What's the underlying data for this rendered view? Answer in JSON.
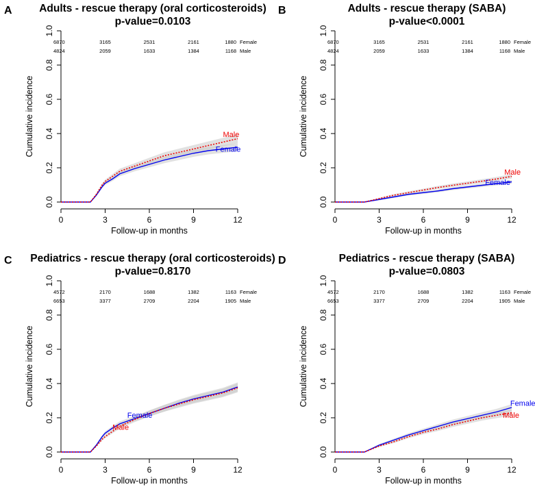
{
  "chart_data": [
    {
      "type": "line",
      "panel": "A",
      "title": "Adults - rescue therapy (oral corticosteroids)",
      "subtitle": "p-value=0.0103",
      "xlabel": "Follow-up in months",
      "ylabel": "Cumulative incidence",
      "xlim": [
        0,
        12
      ],
      "ylim": [
        0,
        1
      ],
      "xticks": [
        "0",
        "3",
        "6",
        "9",
        "12"
      ],
      "yticks": [
        "0.0",
        "0.2",
        "0.4",
        "0.6",
        "0.8",
        "1.0"
      ],
      "risk_table": [
        {
          "label": "Female",
          "counts": [
            "6870",
            "3165",
            "2531",
            "2161",
            "1880"
          ]
        },
        {
          "label": "Male",
          "counts": [
            "4824",
            "2059",
            "1633",
            "1384",
            "1168"
          ]
        }
      ],
      "series": [
        {
          "name": "Female",
          "color": "#0000ee",
          "style": "solid",
          "x": [
            0,
            2,
            2.4,
            2.8,
            3,
            3.5,
            4,
            5,
            6,
            7,
            8,
            9,
            10,
            11,
            12
          ],
          "y": [
            0,
            0,
            0.04,
            0.09,
            0.11,
            0.135,
            0.165,
            0.195,
            0.22,
            0.245,
            0.265,
            0.285,
            0.3,
            0.31,
            0.32
          ]
        },
        {
          "name": "Male",
          "color": "#ee0000",
          "style": "dotted",
          "x": [
            0,
            2,
            2.4,
            2.8,
            3,
            3.5,
            4,
            5,
            6,
            7,
            8,
            9,
            10,
            11,
            12
          ],
          "y": [
            0,
            0,
            0.045,
            0.1,
            0.12,
            0.15,
            0.18,
            0.21,
            0.24,
            0.27,
            0.29,
            0.31,
            0.33,
            0.35,
            0.37
          ]
        }
      ],
      "annotations": [
        {
          "text": "Male",
          "x": 11.0,
          "y": 0.38,
          "color": "#ee0000"
        },
        {
          "text": "Female",
          "x": 10.5,
          "y": 0.295,
          "color": "#0000ee"
        }
      ]
    },
    {
      "type": "line",
      "panel": "B",
      "title": "Adults - rescue therapy (SABA)",
      "subtitle": "p-value<0.0001",
      "xlabel": "Follow-up in months",
      "ylabel": "Cumulative incidence",
      "xlim": [
        0,
        12
      ],
      "ylim": [
        0,
        1
      ],
      "xticks": [
        "0",
        "3",
        "6",
        "9",
        "12"
      ],
      "yticks": [
        "0.0",
        "0.2",
        "0.4",
        "0.6",
        "0.8",
        "1.0"
      ],
      "risk_table": [
        {
          "label": "Female",
          "counts": [
            "6870",
            "3165",
            "2531",
            "2161",
            "1880"
          ]
        },
        {
          "label": "Male",
          "counts": [
            "4824",
            "2059",
            "1633",
            "1384",
            "1168"
          ]
        }
      ],
      "series": [
        {
          "name": "Female",
          "color": "#0000ee",
          "style": "solid",
          "x": [
            0,
            2,
            3,
            4,
            5,
            6,
            7,
            8,
            9,
            10,
            11,
            12
          ],
          "y": [
            0,
            0,
            0.015,
            0.03,
            0.045,
            0.055,
            0.065,
            0.078,
            0.088,
            0.098,
            0.108,
            0.118
          ]
        },
        {
          "name": "Male",
          "color": "#ee0000",
          "style": "dotted",
          "x": [
            0,
            2,
            3,
            4,
            5,
            6,
            7,
            8,
            9,
            10,
            11,
            12
          ],
          "y": [
            0,
            0,
            0.02,
            0.04,
            0.055,
            0.07,
            0.085,
            0.098,
            0.11,
            0.122,
            0.135,
            0.15
          ]
        }
      ],
      "annotations": [
        {
          "text": "Male",
          "x": 11.5,
          "y": 0.16,
          "color": "#ee0000"
        },
        {
          "text": "Female",
          "x": 10.2,
          "y": 0.1,
          "color": "#0000ee"
        }
      ]
    },
    {
      "type": "line",
      "panel": "C",
      "title": "Pediatrics - rescue therapy (oral corticosteroids)",
      "subtitle": "p-value=0.8170",
      "xlabel": "Follow-up in months",
      "ylabel": "Cumulative incidence",
      "xlim": [
        0,
        12
      ],
      "ylim": [
        0,
        1
      ],
      "xticks": [
        "0",
        "3",
        "6",
        "9",
        "12"
      ],
      "yticks": [
        "0.0",
        "0.2",
        "0.4",
        "0.6",
        "0.8",
        "1.0"
      ],
      "risk_table": [
        {
          "label": "Female",
          "counts": [
            "4572",
            "2170",
            "1688",
            "1382",
            "1163"
          ]
        },
        {
          "label": "Male",
          "counts": [
            "6653",
            "3377",
            "2709",
            "2204",
            "1905"
          ]
        }
      ],
      "series": [
        {
          "name": "Female",
          "color": "#0000ee",
          "style": "solid",
          "x": [
            0,
            2,
            2.4,
            2.8,
            3,
            3.5,
            4,
            5,
            6,
            7,
            8,
            9,
            10,
            11,
            12
          ],
          "y": [
            0,
            0,
            0.04,
            0.09,
            0.11,
            0.14,
            0.165,
            0.195,
            0.225,
            0.255,
            0.285,
            0.31,
            0.33,
            0.35,
            0.38
          ]
        },
        {
          "name": "Male",
          "color": "#ee0000",
          "style": "dotted",
          "x": [
            0,
            2,
            2.4,
            2.8,
            3,
            3.5,
            4,
            5,
            6,
            7,
            8,
            9,
            10,
            11,
            12
          ],
          "y": [
            0,
            0,
            0.035,
            0.075,
            0.09,
            0.12,
            0.15,
            0.19,
            0.225,
            0.255,
            0.28,
            0.305,
            0.325,
            0.345,
            0.375
          ]
        }
      ],
      "annotations": [
        {
          "text": "Female",
          "x": 4.5,
          "y": 0.2,
          "color": "#0000ee"
        },
        {
          "text": "Male",
          "x": 3.5,
          "y": 0.13,
          "color": "#ee0000"
        }
      ]
    },
    {
      "type": "line",
      "panel": "D",
      "title": "Pediatrics - rescue therapy (SABA)",
      "subtitle": "p-value=0.0803",
      "xlabel": "Follow-up in months",
      "ylabel": "Cumulative incidence",
      "xlim": [
        0,
        12
      ],
      "ylim": [
        0,
        1
      ],
      "xticks": [
        "0",
        "3",
        "6",
        "9",
        "12"
      ],
      "yticks": [
        "0.0",
        "0.2",
        "0.4",
        "0.6",
        "0.8",
        "1.0"
      ],
      "risk_table": [
        {
          "label": "Female",
          "counts": [
            "4572",
            "2170",
            "1688",
            "1382",
            "1163"
          ]
        },
        {
          "label": "Male",
          "counts": [
            "6653",
            "3377",
            "2709",
            "2204",
            "1905"
          ]
        }
      ],
      "series": [
        {
          "name": "Female",
          "color": "#0000ee",
          "style": "solid",
          "x": [
            0,
            2,
            3,
            4,
            5,
            6,
            7,
            8,
            9,
            10,
            11,
            12
          ],
          "y": [
            0,
            0,
            0.04,
            0.07,
            0.1,
            0.125,
            0.15,
            0.175,
            0.195,
            0.215,
            0.235,
            0.26
          ]
        },
        {
          "name": "Male",
          "color": "#ee0000",
          "style": "dotted",
          "x": [
            0,
            2,
            3,
            4,
            5,
            6,
            7,
            8,
            9,
            10,
            11,
            12
          ],
          "y": [
            0,
            0,
            0.035,
            0.06,
            0.09,
            0.115,
            0.135,
            0.16,
            0.18,
            0.2,
            0.215,
            0.23
          ]
        }
      ],
      "annotations": [
        {
          "text": "Female",
          "x": 11.9,
          "y": 0.27,
          "color": "#0000ee"
        },
        {
          "text": "Male",
          "x": 11.4,
          "y": 0.2,
          "color": "#ee0000"
        }
      ]
    }
  ]
}
